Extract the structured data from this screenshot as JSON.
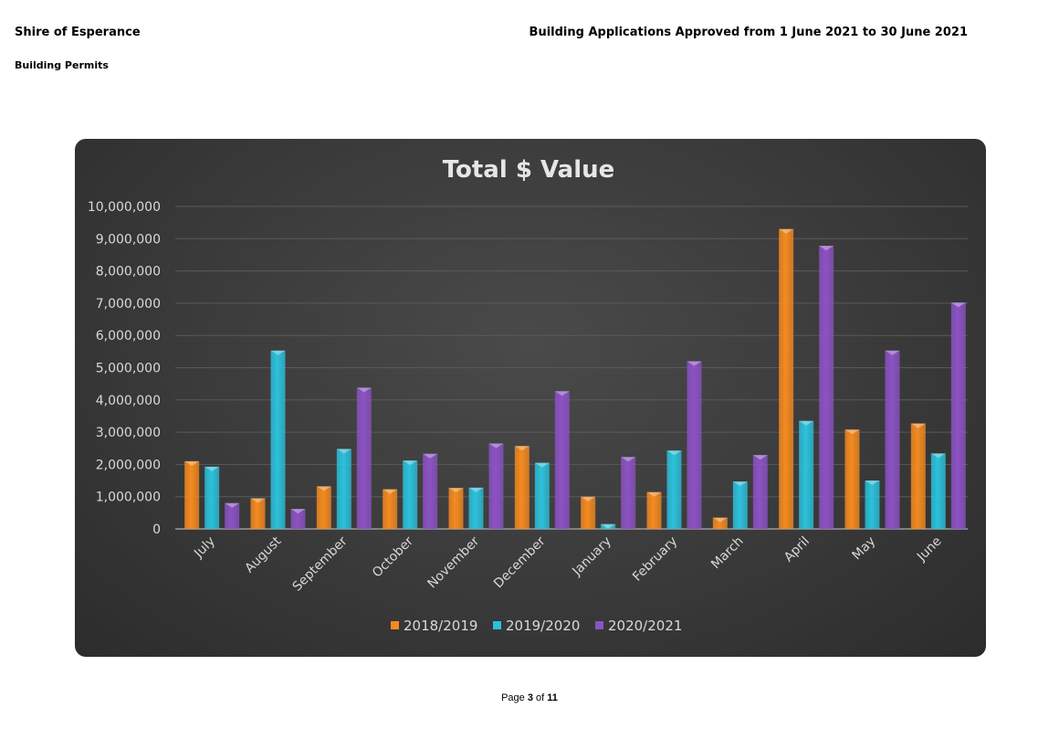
{
  "header": {
    "organisation": "Shire of Esperance",
    "section": "Building Permits",
    "report_title": "Building Applications Approved from 1 June 2021 to 30 June 2021"
  },
  "footer": {
    "page_prefix": "Page",
    "page_current": "3",
    "page_of": "of",
    "page_total": "11"
  },
  "colors": {
    "chart_background": "#3a3a3a",
    "grid": "#5a5a5a",
    "text": "#d9d9d9"
  },
  "chart_data": {
    "type": "bar",
    "title": "Total $ Value",
    "xlabel": "",
    "ylabel": "",
    "ylim": [
      0,
      10000000
    ],
    "yticks": [
      0,
      1000000,
      2000000,
      3000000,
      4000000,
      5000000,
      6000000,
      7000000,
      8000000,
      9000000,
      10000000
    ],
    "ytick_labels": [
      "0",
      "1,000,000",
      "2,000,000",
      "3,000,000",
      "4,000,000",
      "5,000,000",
      "6,000,000",
      "7,000,000",
      "8,000,000",
      "9,000,000",
      "10,000,000"
    ],
    "grid": true,
    "legend_position": "bottom",
    "categories": [
      "July",
      "August",
      "September",
      "October",
      "November",
      "December",
      "January",
      "February",
      "March",
      "April",
      "May",
      "June"
    ],
    "series": [
      {
        "name": "2018/2019",
        "color": "#f58a1f",
        "values": [
          2100000,
          950000,
          1320000,
          1230000,
          1270000,
          2570000,
          1000000,
          1140000,
          350000,
          9300000,
          3080000,
          3270000
        ]
      },
      {
        "name": "2019/2020",
        "color": "#2bc1dc",
        "values": [
          1930000,
          5530000,
          2480000,
          2120000,
          1280000,
          2050000,
          150000,
          2430000,
          1470000,
          3350000,
          1500000,
          2340000
        ]
      },
      {
        "name": "2020/2021",
        "color": "#8c52c4",
        "values": [
          800000,
          620000,
          4380000,
          2330000,
          2650000,
          4270000,
          2230000,
          5200000,
          2290000,
          8780000,
          5530000,
          7020000
        ]
      }
    ]
  }
}
